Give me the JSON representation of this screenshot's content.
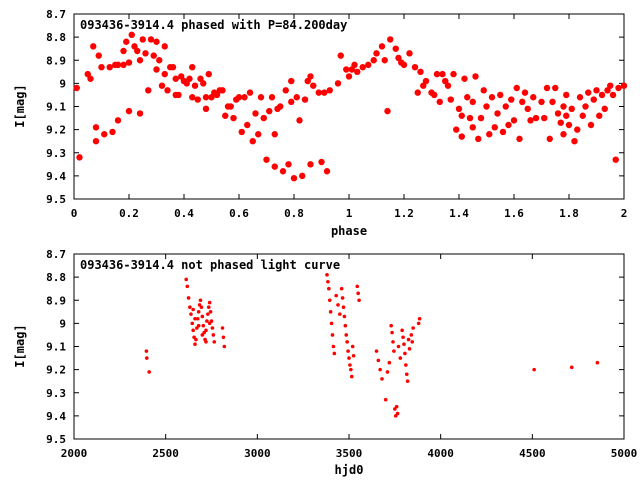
{
  "chart_data": [
    {
      "type": "scatter",
      "title": "093436-3914.4 phased with P=84.200day",
      "xlabel": "phase",
      "ylabel": "I[mag]",
      "xlim": [
        0,
        2
      ],
      "ylim": [
        8.7,
        9.5
      ],
      "y_inverted": true,
      "x_ticks": [
        0,
        0.2,
        0.4,
        0.6,
        0.8,
        1,
        1.2,
        1.4,
        1.6,
        1.8,
        2
      ],
      "x_tick_labels": [
        "0",
        "0.2",
        "0.4",
        "0.6",
        "0.8",
        "1",
        "1.2",
        "1.4",
        "1.6",
        "1.8",
        "2"
      ],
      "y_ticks": [
        8.7,
        8.8,
        8.9,
        9.0,
        9.1,
        9.2,
        9.3,
        9.4,
        9.5
      ],
      "y_tick_labels": [
        "8.7",
        "8.8",
        "8.9",
        "9",
        "9.1",
        "9.2",
        "9.3",
        "9.4",
        "9.5"
      ],
      "grid": false,
      "marker": "filled-circle",
      "color": "#ff0000",
      "points": [
        [
          0.01,
          9.02
        ],
        [
          0.02,
          9.32
        ],
        [
          0.05,
          8.96
        ],
        [
          0.06,
          8.98
        ],
        [
          0.07,
          8.84
        ],
        [
          0.08,
          9.19
        ],
        [
          0.08,
          9.25
        ],
        [
          0.09,
          8.88
        ],
        [
          0.1,
          8.93
        ],
        [
          0.11,
          9.22
        ],
        [
          0.13,
          8.93
        ],
        [
          0.14,
          9.21
        ],
        [
          0.15,
          8.92
        ],
        [
          0.16,
          8.92
        ],
        [
          0.16,
          9.16
        ],
        [
          0.18,
          8.92
        ],
        [
          0.18,
          8.86
        ],
        [
          0.19,
          8.82
        ],
        [
          0.2,
          9.12
        ],
        [
          0.2,
          8.91
        ],
        [
          0.21,
          8.79
        ],
        [
          0.22,
          8.84
        ],
        [
          0.23,
          8.86
        ],
        [
          0.24,
          8.9
        ],
        [
          0.24,
          9.13
        ],
        [
          0.25,
          8.81
        ],
        [
          0.26,
          8.87
        ],
        [
          0.27,
          9.03
        ],
        [
          0.28,
          8.81
        ],
        [
          0.29,
          8.88
        ],
        [
          0.3,
          8.94
        ],
        [
          0.3,
          8.82
        ],
        [
          0.31,
          8.9
        ],
        [
          0.32,
          9.01
        ],
        [
          0.33,
          8.96
        ],
        [
          0.33,
          8.84
        ],
        [
          0.34,
          9.03
        ],
        [
          0.35,
          8.93
        ],
        [
          0.36,
          8.93
        ],
        [
          0.37,
          9.05
        ],
        [
          0.37,
          8.98
        ],
        [
          0.38,
          9.05
        ],
        [
          0.39,
          8.97
        ],
        [
          0.4,
          8.99
        ],
        [
          0.41,
          9.0
        ],
        [
          0.42,
          8.98
        ],
        [
          0.43,
          9.06
        ],
        [
          0.43,
          8.93
        ],
        [
          0.44,
          9.01
        ],
        [
          0.45,
          9.07
        ],
        [
          0.46,
          8.98
        ],
        [
          0.47,
          9.0
        ],
        [
          0.48,
          9.11
        ],
        [
          0.48,
          9.06
        ],
        [
          0.49,
          8.96
        ],
        [
          0.5,
          9.06
        ],
        [
          0.51,
          9.04
        ],
        [
          0.52,
          9.05
        ],
        [
          0.53,
          9.03
        ],
        [
          0.54,
          9.03
        ],
        [
          0.55,
          9.14
        ],
        [
          0.56,
          9.1
        ],
        [
          0.57,
          9.1
        ],
        [
          0.58,
          9.15
        ],
        [
          0.59,
          9.07
        ],
        [
          0.6,
          9.06
        ],
        [
          0.61,
          9.21
        ],
        [
          0.62,
          9.06
        ],
        [
          0.63,
          9.18
        ],
        [
          0.64,
          9.04
        ],
        [
          0.65,
          9.25
        ],
        [
          0.66,
          9.13
        ],
        [
          0.67,
          9.22
        ],
        [
          0.68,
          9.06
        ],
        [
          0.69,
          9.15
        ],
        [
          0.7,
          9.33
        ],
        [
          0.71,
          9.12
        ],
        [
          0.72,
          9.06
        ],
        [
          0.73,
          9.36
        ],
        [
          0.73,
          9.22
        ],
        [
          0.74,
          9.11
        ],
        [
          0.75,
          9.1
        ],
        [
          0.76,
          9.38
        ],
        [
          0.77,
          9.03
        ],
        [
          0.78,
          9.35
        ],
        [
          0.79,
          9.08
        ],
        [
          0.79,
          8.99
        ],
        [
          0.8,
          9.41
        ],
        [
          0.81,
          9.06
        ],
        [
          0.82,
          9.16
        ],
        [
          0.83,
          9.4
        ],
        [
          0.84,
          9.07
        ],
        [
          0.85,
          8.99
        ],
        [
          0.86,
          9.35
        ],
        [
          0.86,
          8.97
        ],
        [
          0.87,
          9.01
        ],
        [
          0.89,
          9.04
        ],
        [
          0.9,
          9.34
        ],
        [
          0.91,
          9.04
        ],
        [
          0.92,
          9.38
        ],
        [
          0.93,
          9.03
        ],
        [
          0.96,
          9.0
        ],
        [
          0.97,
          8.88
        ],
        [
          0.99,
          8.94
        ],
        [
          1.0,
          8.97
        ],
        [
          1.01,
          8.94
        ],
        [
          1.02,
          8.92
        ],
        [
          1.03,
          8.95
        ],
        [
          1.05,
          8.93
        ],
        [
          1.07,
          8.92
        ],
        [
          1.09,
          8.9
        ],
        [
          1.1,
          8.87
        ],
        [
          1.12,
          8.84
        ],
        [
          1.13,
          8.9
        ],
        [
          1.14,
          9.12
        ],
        [
          1.15,
          8.81
        ],
        [
          1.17,
          8.85
        ],
        [
          1.18,
          8.89
        ],
        [
          1.19,
          8.91
        ],
        [
          1.2,
          8.92
        ],
        [
          1.22,
          8.87
        ],
        [
          1.24,
          8.93
        ],
        [
          1.25,
          9.04
        ],
        [
          1.26,
          8.95
        ],
        [
          1.27,
          9.01
        ],
        [
          1.28,
          8.99
        ],
        [
          1.3,
          9.04
        ],
        [
          1.31,
          9.05
        ],
        [
          1.32,
          8.96
        ],
        [
          1.33,
          9.08
        ],
        [
          1.34,
          8.96
        ],
        [
          1.35,
          8.99
        ],
        [
          1.36,
          9.01
        ],
        [
          1.37,
          9.07
        ],
        [
          1.38,
          8.96
        ],
        [
          1.39,
          9.2
        ],
        [
          1.4,
          9.11
        ],
        [
          1.41,
          9.23
        ],
        [
          1.41,
          9.14
        ],
        [
          1.42,
          8.98
        ],
        [
          1.43,
          9.06
        ],
        [
          1.44,
          9.15
        ],
        [
          1.45,
          9.19
        ],
        [
          1.45,
          9.08
        ],
        [
          1.46,
          8.97
        ],
        [
          1.47,
          9.24
        ],
        [
          1.48,
          9.15
        ],
        [
          1.49,
          9.03
        ],
        [
          1.5,
          9.1
        ],
        [
          1.51,
          9.22
        ],
        [
          1.52,
          9.06
        ],
        [
          1.53,
          9.19
        ],
        [
          1.54,
          9.13
        ],
        [
          1.55,
          9.05
        ],
        [
          1.56,
          9.21
        ],
        [
          1.57,
          9.1
        ],
        [
          1.58,
          9.18
        ],
        [
          1.59,
          9.07
        ],
        [
          1.6,
          9.16
        ],
        [
          1.61,
          9.02
        ],
        [
          1.62,
          9.24
        ],
        [
          1.63,
          9.08
        ],
        [
          1.64,
          9.04
        ],
        [
          1.65,
          9.11
        ],
        [
          1.66,
          9.16
        ],
        [
          1.67,
          9.06
        ],
        [
          1.68,
          9.15
        ],
        [
          1.7,
          9.08
        ],
        [
          1.71,
          9.15
        ],
        [
          1.72,
          9.02
        ],
        [
          1.73,
          9.24
        ],
        [
          1.74,
          9.08
        ],
        [
          1.75,
          9.02
        ],
        [
          1.76,
          9.13
        ],
        [
          1.77,
          9.17
        ],
        [
          1.78,
          9.1
        ],
        [
          1.78,
          9.22
        ],
        [
          1.79,
          9.14
        ],
        [
          1.79,
          9.05
        ],
        [
          1.8,
          9.18
        ],
        [
          1.81,
          9.11
        ],
        [
          1.82,
          9.25
        ],
        [
          1.83,
          9.2
        ],
        [
          1.84,
          9.06
        ],
        [
          1.85,
          9.14
        ],
        [
          1.86,
          9.1
        ],
        [
          1.87,
          9.04
        ],
        [
          1.88,
          9.18
        ],
        [
          1.89,
          9.07
        ],
        [
          1.9,
          9.03
        ],
        [
          1.91,
          9.14
        ],
        [
          1.92,
          9.05
        ],
        [
          1.93,
          9.11
        ],
        [
          1.94,
          9.03
        ],
        [
          1.95,
          9.01
        ],
        [
          1.96,
          9.05
        ],
        [
          1.97,
          9.33
        ],
        [
          1.98,
          9.02
        ],
        [
          2.0,
          9.01
        ]
      ]
    },
    {
      "type": "scatter",
      "title": "093436-3914.4 not phased light curve",
      "xlabel": "hjd0",
      "ylabel": "I[mag]",
      "xlim": [
        2000,
        5000
      ],
      "ylim": [
        8.7,
        9.5
      ],
      "y_inverted": true,
      "x_ticks": [
        2000,
        2500,
        3000,
        3500,
        4000,
        4500,
        5000
      ],
      "x_tick_labels": [
        "2000",
        "2500",
        "3000",
        "3500",
        "4000",
        "4500",
        "5000"
      ],
      "y_ticks": [
        8.7,
        8.8,
        8.9,
        9.0,
        9.1,
        9.2,
        9.3,
        9.4,
        9.5
      ],
      "y_tick_labels": [
        "8.7",
        "8.8",
        "8.9",
        "9",
        "9.1",
        "9.2",
        "9.3",
        "9.4",
        "9.5"
      ],
      "grid": false,
      "marker": "small-dot",
      "color": "#ff0000",
      "points": [
        [
          2395,
          9.12
        ],
        [
          2397,
          9.15
        ],
        [
          2410,
          9.21
        ],
        [
          2612,
          8.81
        ],
        [
          2618,
          8.84
        ],
        [
          2625,
          8.89
        ],
        [
          2632,
          8.93
        ],
        [
          2638,
          8.96
        ],
        [
          2645,
          9.0
        ],
        [
          2650,
          9.03
        ],
        [
          2655,
          9.06
        ],
        [
          2660,
          9.09
        ],
        [
          2665,
          9.07
        ],
        [
          2670,
          9.02
        ],
        [
          2675,
          8.98
        ],
        [
          2680,
          8.95
        ],
        [
          2685,
          8.92
        ],
        [
          2690,
          8.9
        ],
        [
          2695,
          8.93
        ],
        [
          2700,
          8.97
        ],
        [
          2705,
          9.01
        ],
        [
          2710,
          9.04
        ],
        [
          2715,
          9.07
        ],
        [
          2720,
          9.03
        ],
        [
          2725,
          8.99
        ],
        [
          2730,
          8.96
        ],
        [
          2735,
          8.93
        ],
        [
          2740,
          8.91
        ],
        [
          2745,
          8.95
        ],
        [
          2750,
          8.99
        ],
        [
          2755,
          9.02
        ],
        [
          2760,
          9.05
        ],
        [
          2765,
          9.08
        ],
        [
          2650,
          8.94
        ],
        [
          2660,
          8.98
        ],
        [
          2680,
          9.01
        ],
        [
          2700,
          9.05
        ],
        [
          2720,
          9.08
        ],
        [
          2740,
          9.0
        ],
        [
          2810,
          9.02
        ],
        [
          2815,
          9.06
        ],
        [
          2820,
          9.1
        ],
        [
          3380,
          8.79
        ],
        [
          3385,
          8.82
        ],
        [
          3390,
          8.85
        ],
        [
          3395,
          8.9
        ],
        [
          3400,
          8.95
        ],
        [
          3405,
          9.0
        ],
        [
          3410,
          9.05
        ],
        [
          3415,
          9.1
        ],
        [
          3420,
          9.13
        ],
        [
          3430,
          8.88
        ],
        [
          3440,
          8.92
        ],
        [
          3450,
          8.96
        ],
        [
          3460,
          8.85
        ],
        [
          3465,
          8.89
        ],
        [
          3470,
          8.93
        ],
        [
          3475,
          8.97
        ],
        [
          3480,
          9.01
        ],
        [
          3485,
          9.05
        ],
        [
          3490,
          9.08
        ],
        [
          3495,
          9.12
        ],
        [
          3500,
          9.15
        ],
        [
          3505,
          9.18
        ],
        [
          3510,
          9.2
        ],
        [
          3515,
          9.23
        ],
        [
          3520,
          9.1
        ],
        [
          3525,
          9.14
        ],
        [
          3545,
          8.84
        ],
        [
          3550,
          8.87
        ],
        [
          3555,
          8.9
        ],
        [
          3650,
          9.12
        ],
        [
          3660,
          9.16
        ],
        [
          3670,
          9.2
        ],
        [
          3680,
          9.24
        ],
        [
          3700,
          9.33
        ],
        [
          3710,
          9.21
        ],
        [
          3720,
          9.17
        ],
        [
          3730,
          9.01
        ],
        [
          3735,
          9.04
        ],
        [
          3740,
          9.08
        ],
        [
          3745,
          9.12
        ],
        [
          3750,
          9.37
        ],
        [
          3755,
          9.4
        ],
        [
          3760,
          9.36
        ],
        [
          3765,
          9.39
        ],
        [
          3770,
          9.1
        ],
        [
          3780,
          9.15
        ],
        [
          3790,
          9.03
        ],
        [
          3795,
          9.06
        ],
        [
          3800,
          9.09
        ],
        [
          3805,
          9.13
        ],
        [
          3810,
          9.18
        ],
        [
          3815,
          9.22
        ],
        [
          3820,
          9.25
        ],
        [
          3825,
          9.07
        ],
        [
          3830,
          9.11
        ],
        [
          3840,
          9.05
        ],
        [
          3845,
          9.08
        ],
        [
          3850,
          9.02
        ],
        [
          3880,
          9.0
        ],
        [
          3885,
          8.98
        ],
        [
          4510,
          9.2
        ],
        [
          4715,
          9.19
        ],
        [
          4855,
          9.17
        ]
      ]
    }
  ]
}
